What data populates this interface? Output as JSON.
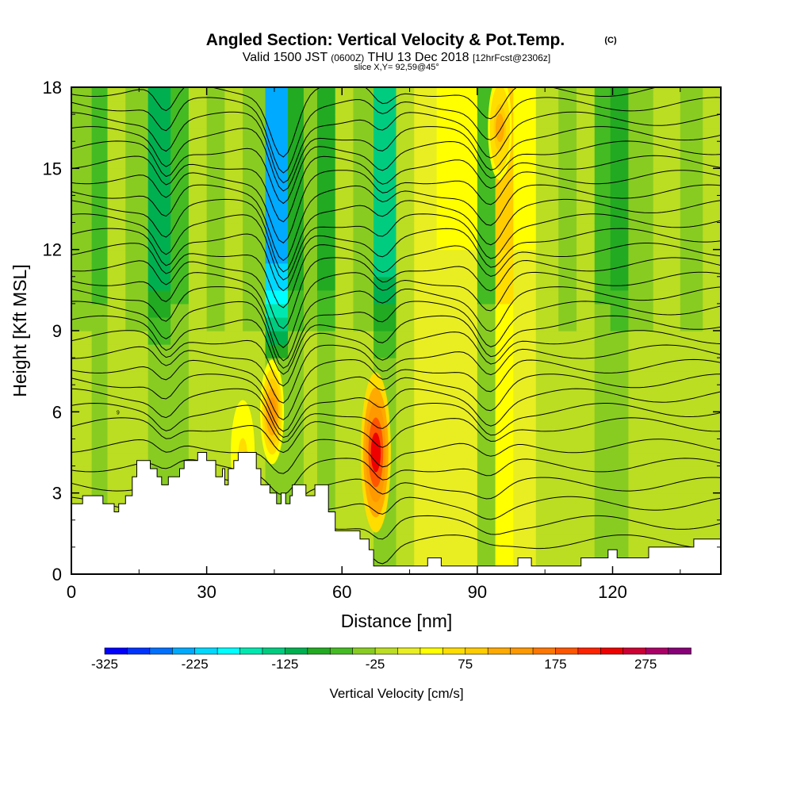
{
  "chart_data": {
    "type": "heatmap",
    "title": "Angled Section: Vertical Velocity & Pot.Temp.",
    "title_unit": "(C)",
    "subtitle": {
      "valid": "Valid 1500 JST",
      "utc": "(0600Z)",
      "date": "THU 13 Dec 2018",
      "forecast": "[12hrFcst@2306z]"
    },
    "slice_label": "slice X,Y= 92,59@45°",
    "xlabel": "Distance [nm]",
    "ylabel": "Height [Kft MSL]",
    "xlim": [
      0,
      144
    ],
    "ylim": [
      0,
      18
    ],
    "xticks": [
      "0",
      "30",
      "60",
      "90",
      "120"
    ],
    "xtick_values": [
      0,
      30,
      60,
      90,
      120
    ],
    "yticks": [
      "0",
      "3",
      "6",
      "9",
      "12",
      "15",
      "18"
    ],
    "ytick_values": [
      0,
      3,
      6,
      9,
      12,
      15,
      18
    ],
    "colorbar": {
      "label": "Vertical Velocity [cm/s]",
      "min": -325,
      "max": 325,
      "step": 25,
      "tick_labels": [
        "-325",
        "-225",
        "-125",
        "-25",
        "75",
        "175",
        "275"
      ],
      "tick_values": [
        -325,
        -225,
        -125,
        -25,
        75,
        175,
        275
      ],
      "colors": [
        "#0000ff",
        "#0033ff",
        "#0070ff",
        "#00aaff",
        "#00d8ff",
        "#00ffff",
        "#00e8b0",
        "#00cc80",
        "#00b050",
        "#22aa22",
        "#44bb22",
        "#88cc22",
        "#bbdd22",
        "#e8ee22",
        "#ffff00",
        "#ffdd00",
        "#ffcc00",
        "#ffaa00",
        "#ff9900",
        "#ff7700",
        "#ff5500",
        "#ff2200",
        "#ee0000",
        "#cc0033",
        "#aa0066",
        "#880077"
      ]
    },
    "vertical_velocity_columns": [
      {
        "x": 3,
        "value": -50
      },
      {
        "x": 6,
        "value": -75
      },
      {
        "x": 10,
        "value": -25
      },
      {
        "x": 14,
        "value": -50
      },
      {
        "x": 20,
        "value": -125
      },
      {
        "x": 24,
        "value": -75
      },
      {
        "x": 28,
        "value": -25
      },
      {
        "x": 32,
        "value": -50
      },
      {
        "x": 36,
        "value": -25
      },
      {
        "x": 40,
        "value": -50
      },
      {
        "x": 46,
        "value": -250
      },
      {
        "x": 50,
        "value": -100
      },
      {
        "x": 53,
        "value": -50
      },
      {
        "x": 56,
        "value": -100
      },
      {
        "x": 61,
        "value": -25
      },
      {
        "x": 64,
        "value": -50
      },
      {
        "x": 70,
        "value": -150
      },
      {
        "x": 74,
        "value": -25
      },
      {
        "x": 78,
        "value": 0
      },
      {
        "x": 84,
        "value": 25
      },
      {
        "x": 88,
        "value": 25
      },
      {
        "x": 92,
        "value": -75
      },
      {
        "x": 96,
        "value": 75
      },
      {
        "x": 100,
        "value": 25
      },
      {
        "x": 106,
        "value": -25
      },
      {
        "x": 110,
        "value": -50
      },
      {
        "x": 114,
        "value": -25
      },
      {
        "x": 118,
        "value": -75
      },
      {
        "x": 121,
        "value": -100
      },
      {
        "x": 126,
        "value": -50
      },
      {
        "x": 132,
        "value": -25
      },
      {
        "x": 138,
        "value": -50
      },
      {
        "x": 142,
        "value": -25
      }
    ],
    "lower_updrafts": [
      {
        "x": 44.5,
        "y": 6.0,
        "value": 125
      },
      {
        "x": 67.5,
        "y": 4.5,
        "value": 225
      },
      {
        "x": 38,
        "y": 4.5,
        "value": 50
      },
      {
        "x": 95,
        "y": 16.5,
        "value": 100
      }
    ],
    "terrain": [
      [
        0,
        2.6
      ],
      [
        2.5,
        2.6
      ],
      [
        2.5,
        2.9
      ],
      [
        7,
        2.9
      ],
      [
        7,
        2.6
      ],
      [
        9.5,
        2.6
      ],
      [
        9.5,
        2.3
      ],
      [
        10.5,
        2.3
      ],
      [
        10.5,
        2.6
      ],
      [
        12,
        2.6
      ],
      [
        12,
        2.9
      ],
      [
        13.5,
        2.9
      ],
      [
        13.5,
        3.6
      ],
      [
        14.5,
        3.6
      ],
      [
        14.5,
        4.2
      ],
      [
        17.5,
        4.2
      ],
      [
        17.5,
        3.9
      ],
      [
        19,
        3.9
      ],
      [
        19,
        3.6
      ],
      [
        20,
        3.6
      ],
      [
        20,
        3.3
      ],
      [
        21.5,
        3.3
      ],
      [
        21.5,
        3.6
      ],
      [
        24,
        3.6
      ],
      [
        24,
        3.9
      ],
      [
        25,
        3.9
      ],
      [
        25,
        4.2
      ],
      [
        28,
        4.2
      ],
      [
        28,
        4.5
      ],
      [
        30,
        4.5
      ],
      [
        30,
        4.2
      ],
      [
        32,
        4.2
      ],
      [
        32,
        3.6
      ],
      [
        33.5,
        3.6
      ],
      [
        33.5,
        3.9
      ],
      [
        34,
        3.9
      ],
      [
        34,
        3.3
      ],
      [
        34.8,
        3.3
      ],
      [
        34.8,
        3.9
      ],
      [
        36,
        3.9
      ],
      [
        36,
        4.2
      ],
      [
        37,
        4.2
      ],
      [
        37,
        4.5
      ],
      [
        41,
        4.5
      ],
      [
        41,
        3.9
      ],
      [
        42,
        3.9
      ],
      [
        42,
        3.3
      ],
      [
        44,
        3.3
      ],
      [
        44,
        3.0
      ],
      [
        45.5,
        3.0
      ],
      [
        45.5,
        2.6
      ],
      [
        46.5,
        2.6
      ],
      [
        46.5,
        3.0
      ],
      [
        47.5,
        3.0
      ],
      [
        47.5,
        2.6
      ],
      [
        48.5,
        2.6
      ],
      [
        48.5,
        2.9
      ],
      [
        49,
        2.9
      ],
      [
        49,
        3.3
      ],
      [
        52,
        3.3
      ],
      [
        52,
        2.9
      ],
      [
        54,
        2.9
      ],
      [
        54,
        3.3
      ],
      [
        57,
        3.3
      ],
      [
        57,
        2.3
      ],
      [
        58.5,
        2.3
      ],
      [
        58.5,
        1.6
      ],
      [
        64,
        1.6
      ],
      [
        64,
        1.3
      ],
      [
        66,
        1.3
      ],
      [
        66,
        0.9
      ],
      [
        67,
        0.9
      ],
      [
        67,
        0.3
      ],
      [
        79,
        0.3
      ],
      [
        79,
        0.6
      ],
      [
        82,
        0.6
      ],
      [
        82,
        0.3
      ],
      [
        99,
        0.3
      ],
      [
        99,
        0.6
      ],
      [
        102,
        0.6
      ],
      [
        102,
        0.3
      ],
      [
        113,
        0.3
      ],
      [
        113,
        0.6
      ],
      [
        119,
        0.6
      ],
      [
        119,
        0.9
      ],
      [
        121,
        0.9
      ],
      [
        121,
        0.6
      ],
      [
        128,
        0.6
      ],
      [
        128,
        1.0
      ],
      [
        138,
        1.0
      ],
      [
        138,
        1.3
      ],
      [
        144,
        1.3
      ]
    ],
    "isentrope_count": 30,
    "isentrope_label": "9"
  }
}
